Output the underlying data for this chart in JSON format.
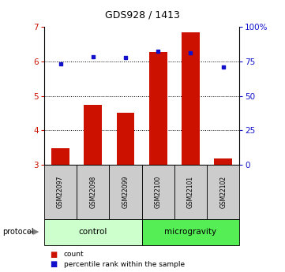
{
  "title": "GDS928 / 1413",
  "samples": [
    "GSM22097",
    "GSM22098",
    "GSM22099",
    "GSM22100",
    "GSM22101",
    "GSM22102"
  ],
  "groups": [
    "control",
    "control",
    "control",
    "microgravity",
    "microgravity",
    "microgravity"
  ],
  "bar_values": [
    3.47,
    4.73,
    4.51,
    6.27,
    6.84,
    3.18
  ],
  "scatter_values": [
    5.93,
    6.13,
    6.12,
    6.3,
    6.25,
    5.85
  ],
  "bar_color": "#cc1100",
  "scatter_color": "#1111cc",
  "ylim": [
    3.0,
    7.0
  ],
  "yticks_left": [
    3,
    4,
    5,
    6,
    7
  ],
  "yticks_right": [
    0,
    25,
    50,
    75,
    100
  ],
  "ylabel_right_color": "#1111cc",
  "ylabel_left_color": "#cc1100",
  "grid_color": "black",
  "control_color": "#ccffcc",
  "microgravity_color": "#55ee55",
  "sample_bg_color": "#cccccc",
  "protocol_text": "protocol",
  "control_label": "control",
  "microgravity_label": "microgravity",
  "legend_count": "count",
  "legend_percentile": "percentile rank within the sample",
  "bar_bottom": 3.0
}
